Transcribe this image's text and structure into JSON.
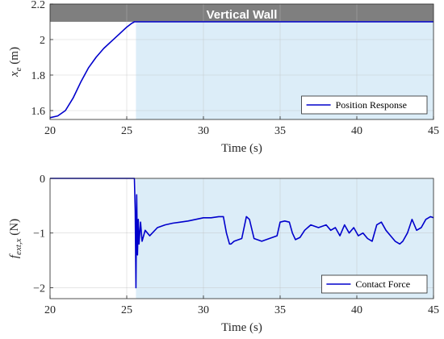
{
  "chart_data": [
    {
      "type": "line",
      "panel": "top",
      "banner": "Vertical Wall",
      "xlabel": "Time (s)",
      "ylabel_parts": [
        "x",
        "e",
        " (m)"
      ],
      "xlim": [
        20,
        45
      ],
      "ylim": [
        1.55,
        2.2
      ],
      "xticks": [
        20,
        25,
        30,
        35,
        40,
        45
      ],
      "yticks": [
        1.6,
        1.8,
        2,
        2.2
      ],
      "ytick_labels": [
        "1.6",
        "1.8",
        "2",
        "2.2"
      ],
      "contact_region": [
        25.6,
        45
      ],
      "wall_level": 2.1,
      "grid": true,
      "legend_position": "bottom-right",
      "series": [
        {
          "name": "Position Response",
          "color": "#0000cc",
          "x": [
            20.0,
            20.5,
            21.0,
            21.5,
            22.0,
            22.5,
            23.0,
            23.5,
            24.0,
            24.5,
            25.0,
            25.3,
            25.5,
            25.8,
            26.0,
            45.0
          ],
          "y": [
            1.56,
            1.57,
            1.6,
            1.67,
            1.76,
            1.84,
            1.9,
            1.95,
            1.99,
            2.03,
            2.07,
            2.09,
            2.1,
            2.1,
            2.1,
            2.1
          ]
        }
      ]
    },
    {
      "type": "line",
      "panel": "bottom",
      "xlabel": "Time (s)",
      "ylabel_parts": [
        "f",
        "ext,x",
        " (N)"
      ],
      "xlim": [
        20,
        45
      ],
      "ylim": [
        -2.2,
        0
      ],
      "xticks": [
        20,
        25,
        30,
        35,
        40,
        45
      ],
      "yticks": [
        -2,
        -1,
        0
      ],
      "ytick_labels": [
        "−2",
        "−1",
        "0"
      ],
      "contact_region": [
        25.6,
        45
      ],
      "grid": true,
      "legend_position": "bottom-right",
      "series": [
        {
          "name": "Contact Force",
          "color": "#0000cc",
          "x": [
            20.0,
            25.5,
            25.55,
            25.6,
            25.65,
            25.7,
            25.75,
            25.8,
            25.9,
            26.0,
            26.2,
            26.5,
            27.0,
            27.5,
            28.0,
            28.5,
            29.0,
            29.5,
            30.0,
            30.5,
            31.0,
            31.3,
            31.5,
            31.7,
            31.8,
            32.0,
            32.5,
            32.8,
            33.0,
            33.3,
            33.8,
            34.3,
            34.8,
            35.0,
            35.3,
            35.6,
            35.8,
            36.0,
            36.3,
            36.6,
            37.0,
            37.5,
            38.0,
            38.3,
            38.6,
            38.9,
            39.2,
            39.5,
            39.8,
            40.1,
            40.4,
            40.7,
            41.0,
            41.3,
            41.6,
            41.9,
            42.2,
            42.5,
            42.8,
            43.0,
            43.3,
            43.6,
            43.9,
            44.2,
            44.5,
            44.8,
            45.0
          ],
          "y": [
            0.0,
            0.0,
            -0.6,
            -2.0,
            -0.3,
            -1.4,
            -0.75,
            -1.2,
            -0.8,
            -1.15,
            -0.95,
            -1.05,
            -0.9,
            -0.85,
            -0.82,
            -0.8,
            -0.78,
            -0.75,
            -0.72,
            -0.72,
            -0.7,
            -0.7,
            -1.0,
            -1.2,
            -1.2,
            -1.15,
            -1.1,
            -0.7,
            -0.75,
            -1.1,
            -1.15,
            -1.1,
            -1.05,
            -0.8,
            -0.78,
            -0.8,
            -1.0,
            -1.12,
            -1.08,
            -0.95,
            -0.85,
            -0.9,
            -0.85,
            -0.95,
            -0.9,
            -1.05,
            -0.85,
            -1.0,
            -0.9,
            -1.05,
            -1.0,
            -1.1,
            -1.15,
            -0.85,
            -0.8,
            -0.95,
            -1.05,
            -1.15,
            -1.2,
            -1.15,
            -1.0,
            -0.75,
            -0.95,
            -0.9,
            -0.75,
            -0.7,
            -0.72
          ]
        }
      ]
    }
  ]
}
